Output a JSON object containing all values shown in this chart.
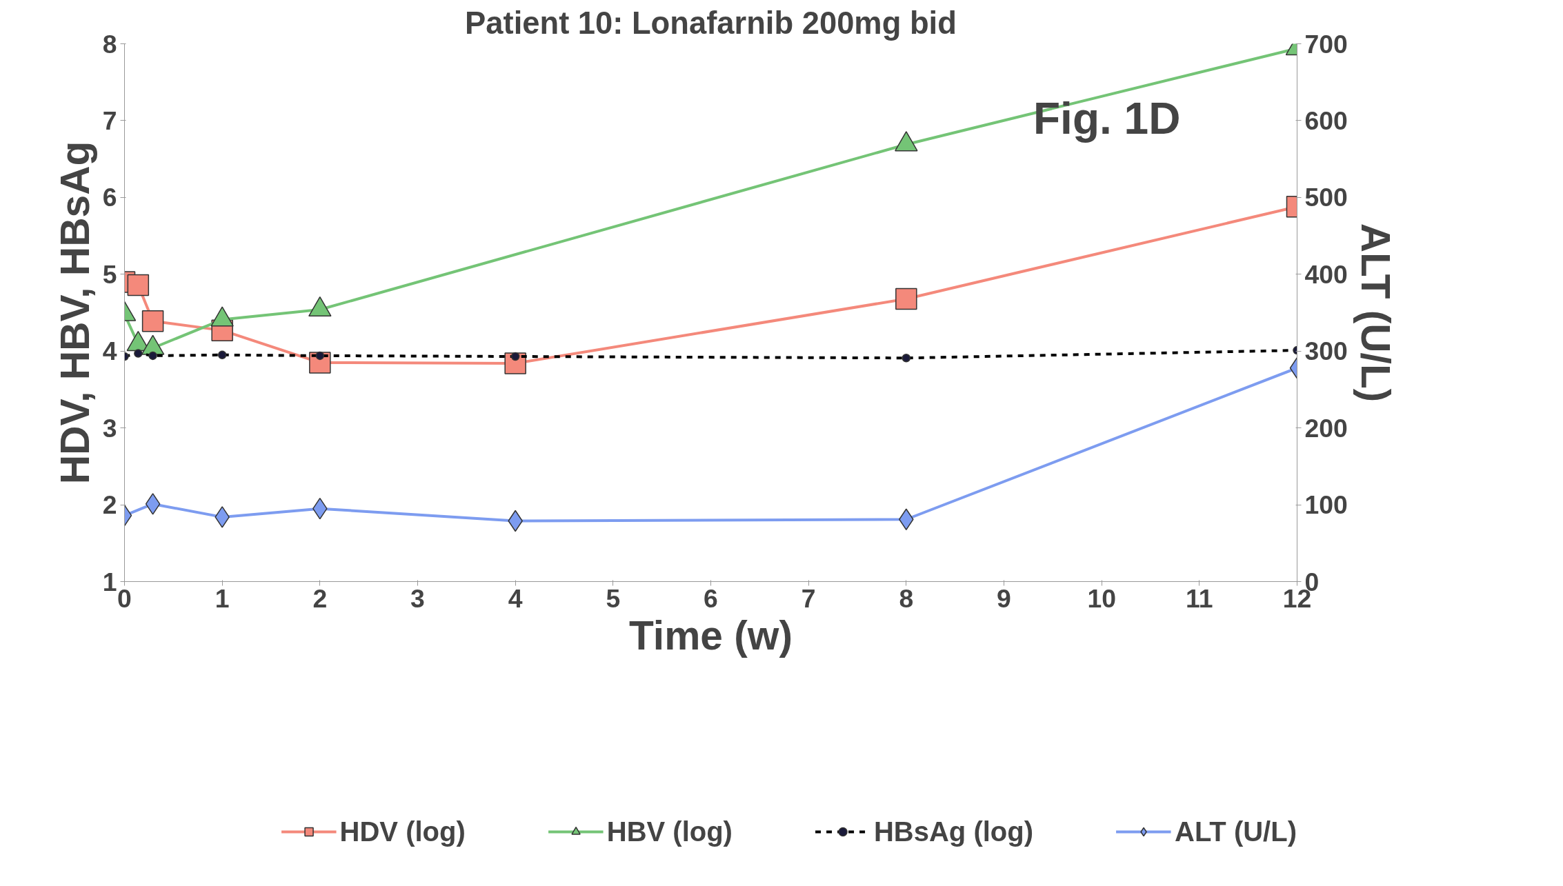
{
  "chart_data": {
    "type": "line",
    "title": "Patient 10: Lonafarnib 200mg bid",
    "xlabel": "Time (w)",
    "ylabel": "HDV, HBV, HBsAg",
    "y2label": "ALT (U/L)",
    "xlim": [
      0,
      12
    ],
    "xticks": [
      0,
      1,
      2,
      3,
      4,
      5,
      6,
      7,
      8,
      9,
      10,
      11,
      12
    ],
    "ylim": [
      1,
      8
    ],
    "yticks": [
      1,
      2,
      3,
      4,
      5,
      6,
      7,
      8
    ],
    "y2lim": [
      0,
      700
    ],
    "y2ticks": [
      0,
      100,
      200,
      300,
      400,
      500,
      600,
      700
    ],
    "grid": false,
    "legend": "bottom",
    "annotations": [
      "Fig. 1D"
    ],
    "series": [
      {
        "name": "HDV (log)",
        "color": "#f4897b",
        "marker": "square",
        "line_style": "solid",
        "x": [
          0,
          0.14,
          0.29,
          1,
          2,
          4,
          8,
          12
        ],
        "values": [
          4.9,
          4.86,
          4.39,
          4.27,
          3.85,
          3.84,
          4.68,
          5.88
        ]
      },
      {
        "name": "HBV (log)",
        "color": "#74c476",
        "marker": "triangle",
        "line_style": "solid",
        "x": [
          0,
          0.14,
          0.29,
          1,
          2,
          8,
          12
        ],
        "values": [
          4.48,
          4.09,
          4.04,
          4.41,
          4.54,
          6.69,
          7.94
        ]
      },
      {
        "name": "HBsAg (log)",
        "color": "#000000",
        "marker": "circle",
        "line_style": "dashed",
        "x": [
          0,
          0.14,
          0.29,
          1,
          2,
          4,
          8,
          12
        ],
        "values": [
          3.93,
          3.97,
          3.94,
          3.95,
          3.94,
          3.93,
          3.91,
          4.01
        ]
      },
      {
        "name": "ALT (U/L)",
        "color": "#7d9cf0",
        "marker": "diamond",
        "line_style": "solid",
        "axis": "y2",
        "x": [
          0,
          0.29,
          1,
          2,
          4,
          8,
          12
        ],
        "values": [
          86,
          101,
          84,
          95,
          79,
          81,
          278
        ]
      }
    ]
  }
}
